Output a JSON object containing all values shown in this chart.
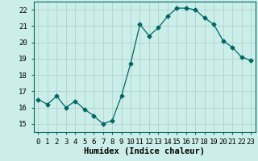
{
  "xlabel": "Humidex (Indice chaleur)",
  "x_values": [
    0,
    1,
    2,
    3,
    4,
    5,
    6,
    7,
    8,
    9,
    10,
    11,
    12,
    13,
    14,
    15,
    16,
    17,
    18,
    19,
    20,
    21,
    22,
    23
  ],
  "y_values": [
    16.5,
    16.2,
    16.7,
    16.0,
    16.4,
    15.9,
    15.5,
    15.0,
    15.2,
    16.7,
    18.7,
    21.1,
    20.4,
    20.9,
    21.6,
    22.1,
    22.1,
    22.0,
    21.5,
    21.1,
    20.1,
    19.7,
    19.1,
    18.9
  ],
  "line_color": "#006666",
  "marker": "D",
  "marker_size": 2.5,
  "bg_color": "#cceee8",
  "grid_color": "#aacccc",
  "ylim": [
    14.5,
    22.5
  ],
  "xlim": [
    -0.5,
    23.5
  ],
  "yticks": [
    15,
    16,
    17,
    18,
    19,
    20,
    21,
    22
  ],
  "xticks": [
    0,
    1,
    2,
    3,
    4,
    5,
    6,
    7,
    8,
    9,
    10,
    11,
    12,
    13,
    14,
    15,
    16,
    17,
    18,
    19,
    20,
    21,
    22,
    23
  ],
  "tick_fontsize": 6.5,
  "xlabel_fontsize": 7.5
}
